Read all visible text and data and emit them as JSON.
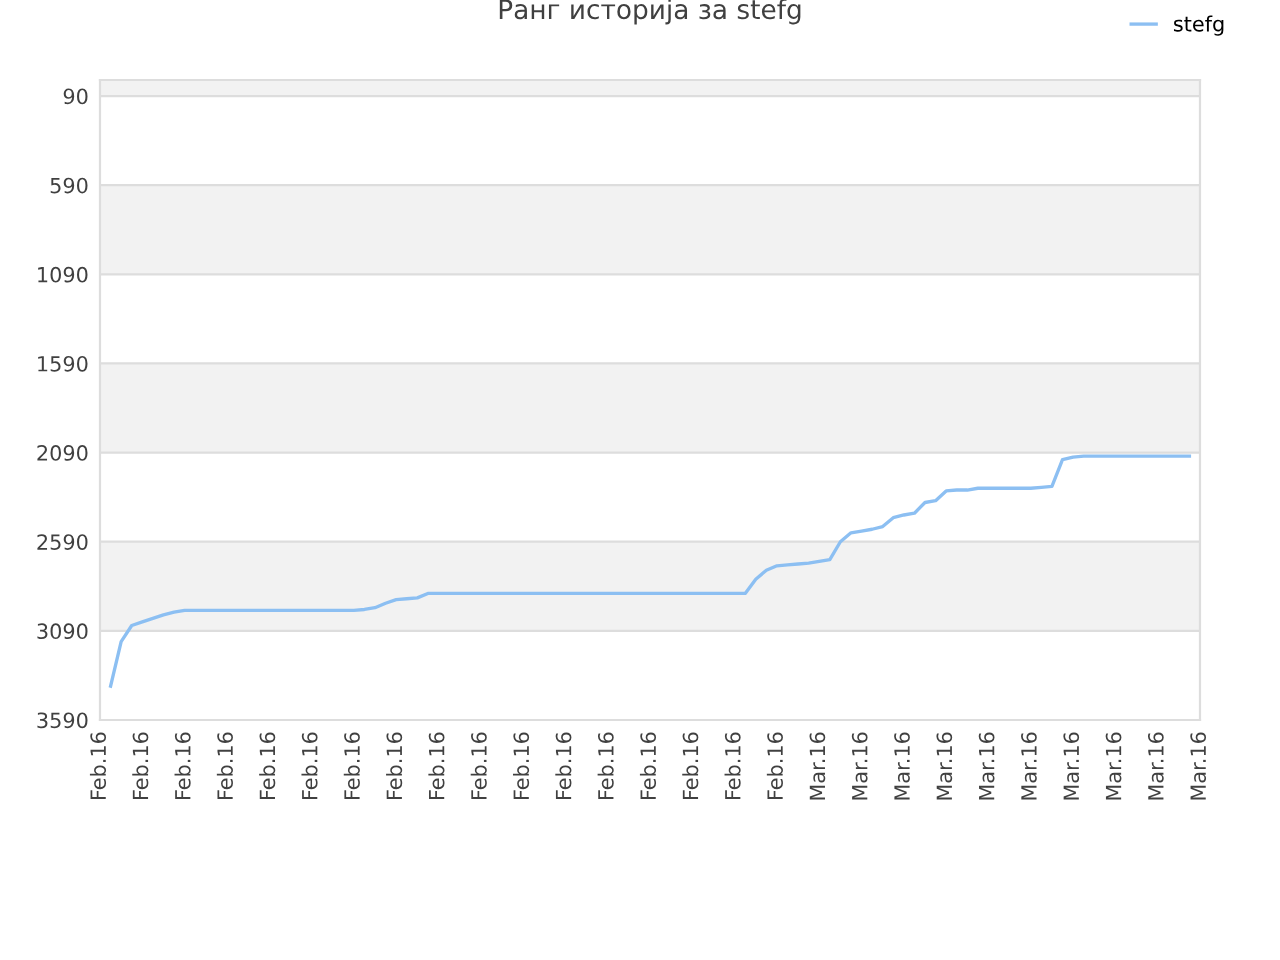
{
  "chart_data": {
    "type": "line",
    "title": "Ранг историја за stefg",
    "legend": "top right",
    "grid": "y",
    "categories": [
      "Feb.16",
      null,
      null,
      null,
      "Feb.16",
      null,
      null,
      null,
      "Feb.16",
      null,
      null,
      null,
      "Feb.16",
      null,
      null,
      null,
      "Feb.16",
      null,
      null,
      null,
      "Feb.16",
      null,
      null,
      null,
      "Feb.16",
      null,
      null,
      null,
      "Feb.16",
      null,
      null,
      null,
      "Feb.16",
      null,
      null,
      null,
      "Feb.16",
      null,
      null,
      null,
      "Feb.16",
      null,
      null,
      null,
      "Feb.16",
      null,
      null,
      null,
      "Feb.16",
      null,
      null,
      null,
      "Feb.16",
      null,
      null,
      null,
      "Feb.16",
      null,
      null,
      null,
      "Feb.16",
      null,
      null,
      null,
      "Feb.16",
      null,
      null,
      null,
      "Mar.16",
      null,
      null,
      null,
      "Mar.16",
      null,
      null,
      null,
      "Mar.16",
      null,
      null,
      null,
      "Mar.16",
      null,
      null,
      null,
      "Mar.16",
      null,
      null,
      null,
      "Mar.16",
      null,
      null,
      null,
      "Mar.16",
      null,
      null,
      null,
      "Mar.16",
      null,
      null,
      null,
      "Mar.16",
      null,
      null,
      null,
      "Mar.16"
    ],
    "ylim": [
      3590,
      0
    ],
    "yticks": [
      90,
      590,
      1090,
      1590,
      2090,
      2590,
      3090,
      3590
    ],
    "bands": [
      {
        "axis": "y",
        "from": 0,
        "to": 90,
        "color": "#f2f2f2"
      },
      {
        "axis": "y",
        "from": 590,
        "to": 1090,
        "color": "#f2f2f2"
      },
      {
        "axis": "y",
        "from": 1590,
        "to": 2090,
        "color": "#f2f2f2"
      },
      {
        "axis": "y",
        "from": 2590,
        "to": 3090,
        "color": "#f2f2f2"
      }
    ],
    "series": [
      {
        "name": "stefg",
        "color": "#8cbff2",
        "values": [
          null,
          3400,
          3150,
          3060,
          3040,
          3020,
          3000,
          2985,
          2975,
          2975,
          2975,
          2975,
          2975,
          2975,
          2975,
          2975,
          2975,
          2975,
          2975,
          2975,
          2975,
          2975,
          2975,
          2975,
          2975,
          2970,
          2960,
          2935,
          2915,
          2910,
          2905,
          2880,
          2880,
          2880,
          2880,
          2880,
          2880,
          2880,
          2880,
          2880,
          2880,
          2880,
          2880,
          2880,
          2880,
          2880,
          2880,
          2880,
          2880,
          2880,
          2880,
          2880,
          2880,
          2880,
          2880,
          2880,
          2880,
          2880,
          2880,
          2880,
          2880,
          2880,
          2800,
          2750,
          2725,
          2720,
          2715,
          2710,
          2700,
          2690,
          2590,
          2540,
          2530,
          2520,
          2505,
          2455,
          2440,
          2430,
          2370,
          2360,
          2305,
          2300,
          2300,
          2290,
          2290,
          2290,
          2290,
          2290,
          2290,
          2285,
          2280,
          2130,
          2115,
          2110,
          2110,
          2110,
          2110,
          2110,
          2110,
          2110,
          2110,
          2110,
          2110,
          2110,
          null
        ]
      }
    ]
  }
}
